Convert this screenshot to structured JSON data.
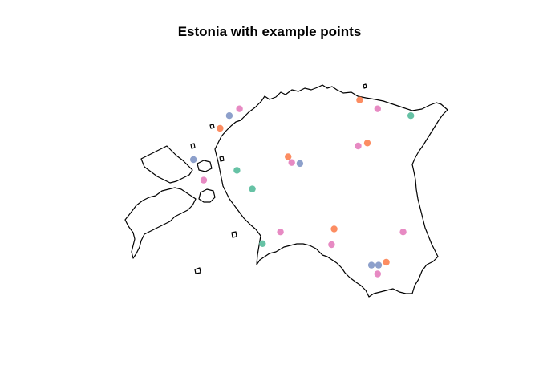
{
  "title": "Estonia with example points",
  "map": {
    "region": "Estonia",
    "outline_color": "#000000",
    "background_color": "#ffffff",
    "point_palette": [
      "#66C2A5",
      "#FC8D62",
      "#8DA0CB",
      "#E78AC3"
    ],
    "points": [
      {
        "lon": 27.45,
        "lat": 59.37,
        "group": 1
      },
      {
        "lon": 24.05,
        "lat": 58.81,
        "group": 1
      },
      {
        "lon": 24.35,
        "lat": 58.62,
        "group": 1
      },
      {
        "lon": 24.55,
        "lat": 58.06,
        "group": 1
      },
      {
        "lon": 26.45,
        "lat": 59.53,
        "group": 2
      },
      {
        "lon": 23.72,
        "lat": 59.24,
        "group": 2
      },
      {
        "lon": 25.05,
        "lat": 58.95,
        "group": 2
      },
      {
        "lon": 26.6,
        "lat": 59.09,
        "group": 2
      },
      {
        "lon": 25.95,
        "lat": 58.21,
        "group": 2
      },
      {
        "lon": 26.97,
        "lat": 57.87,
        "group": 2
      },
      {
        "lon": 23.9,
        "lat": 59.37,
        "group": 3
      },
      {
        "lon": 23.2,
        "lat": 58.92,
        "group": 3
      },
      {
        "lon": 25.28,
        "lat": 58.88,
        "group": 3
      },
      {
        "lon": 26.68,
        "lat": 57.84,
        "group": 3
      },
      {
        "lon": 26.82,
        "lat": 57.84,
        "group": 3
      },
      {
        "lon": 24.1,
        "lat": 59.44,
        "group": 4
      },
      {
        "lon": 26.8,
        "lat": 59.44,
        "group": 4
      },
      {
        "lon": 26.42,
        "lat": 59.06,
        "group": 4
      },
      {
        "lon": 25.12,
        "lat": 58.89,
        "group": 4
      },
      {
        "lon": 23.4,
        "lat": 58.71,
        "group": 4
      },
      {
        "lon": 24.9,
        "lat": 58.18,
        "group": 4
      },
      {
        "lon": 27.3,
        "lat": 58.18,
        "group": 4
      },
      {
        "lon": 25.9,
        "lat": 58.05,
        "group": 4
      },
      {
        "lon": 26.8,
        "lat": 57.75,
        "group": 4
      }
    ]
  }
}
